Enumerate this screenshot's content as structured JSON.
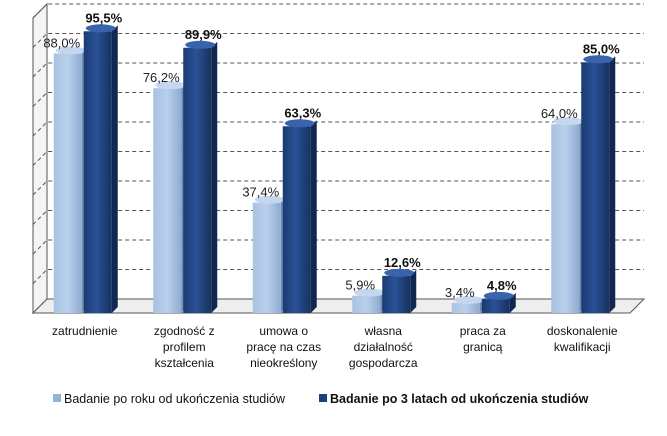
{
  "chart_data": {
    "type": "bar",
    "categories": [
      [
        "zatrudnienie"
      ],
      [
        "zgodność z",
        "profilem",
        "kształcenia"
      ],
      [
        "umowa o",
        "pracę na czas",
        "nieokreślony"
      ],
      [
        "własna",
        "działalność",
        "gospodarcza"
      ],
      [
        "praca za",
        "granicą"
      ],
      [
        "doskonalenie",
        "kwalifikacji"
      ]
    ],
    "series": [
      {
        "name": "Badanie po roku od ukończenia studiów",
        "values": [
          88.0,
          76.2,
          37.4,
          5.9,
          3.4,
          64.0
        ],
        "labels": [
          "88,0%",
          "76,2%",
          "37,4%",
          "5,9%",
          "3,4%",
          "64,0%"
        ],
        "color": "#95b3d7"
      },
      {
        "name": "Badanie po 3 latach od ukończenia studiów",
        "values": [
          95.5,
          89.9,
          63.3,
          12.6,
          4.8,
          85.0
        ],
        "labels": [
          "95,5%",
          "89,9%",
          "63,3%",
          "12,6%",
          "4,8%",
          "85,0%"
        ],
        "color": "#1f3f7a"
      }
    ],
    "ylim": [
      0,
      100
    ],
    "grid": true,
    "gridline_style": "dashed",
    "legend_position": "bottom",
    "three_d": true
  }
}
